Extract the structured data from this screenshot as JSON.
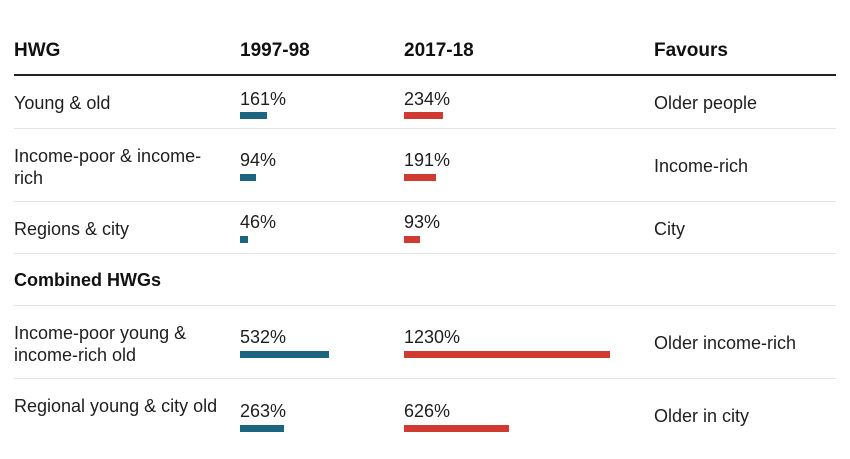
{
  "chart_data": {
    "type": "table",
    "columns": {
      "group": "HWG",
      "period1": "1997-98",
      "period2": "2017-18",
      "favours": "Favours"
    },
    "colors": {
      "period1": "#1b6581",
      "period2": "#d13a31"
    },
    "section_label": "Combined HWGs",
    "rows": [
      {
        "label": "Young & old",
        "v1": 161,
        "v1_label": "161%",
        "v2": 234,
        "v2_label": "234%",
        "favours": "Older people"
      },
      {
        "label": "Income-poor & income-rich",
        "v1": 94,
        "v1_label": "94%",
        "v2": 191,
        "v2_label": "191%",
        "favours": "Income-rich"
      },
      {
        "label": "Regions & city",
        "v1": 46,
        "v1_label": "46%",
        "v2": 93,
        "v2_label": "93%",
        "favours": "City"
      },
      {
        "label": "Income-poor young & income-rich old",
        "v1": 532,
        "v1_label": "532%",
        "v2": 1230,
        "v2_label": "1230%",
        "favours": "Older income-rich"
      },
      {
        "label": "Regional young & city old",
        "v1": 263,
        "v1_label": "263%",
        "v2": 626,
        "v2_label": "626%",
        "favours": "Older in city"
      }
    ]
  }
}
